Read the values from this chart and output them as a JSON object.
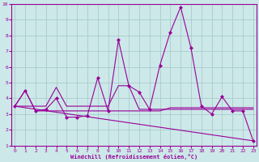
{
  "bg_color": "#cce8e8",
  "grid_color": "#aacccc",
  "line_color": "#990099",
  "xlabel": "Windchill (Refroidissement éolien,°C)",
  "ylim": [
    1,
    10
  ],
  "xlim": [
    0,
    23
  ],
  "yticks": [
    1,
    2,
    3,
    4,
    5,
    6,
    7,
    8,
    9,
    10
  ],
  "xticks": [
    0,
    1,
    2,
    3,
    4,
    5,
    6,
    7,
    8,
    9,
    10,
    11,
    12,
    13,
    14,
    15,
    16,
    17,
    18,
    19,
    20,
    21,
    22,
    23
  ],
  "series1_x": [
    0,
    1,
    2,
    3,
    4,
    5,
    6,
    7,
    8,
    9,
    10,
    11,
    12,
    13,
    14,
    15,
    16,
    17,
    18,
    19,
    20,
    21,
    22,
    23
  ],
  "series1_y": [
    3.5,
    4.5,
    3.2,
    3.3,
    4.0,
    2.8,
    2.8,
    2.9,
    5.3,
    3.2,
    7.7,
    4.8,
    4.4,
    3.3,
    6.1,
    8.2,
    9.8,
    7.2,
    3.5,
    3.0,
    4.1,
    3.2,
    3.2,
    1.3
  ],
  "series2_x": [
    0,
    1,
    2,
    3,
    4,
    5,
    6,
    7,
    8,
    9,
    10,
    11,
    12,
    13,
    14,
    15,
    16,
    17,
    18,
    19,
    20,
    21,
    22,
    23
  ],
  "series2_y": [
    3.5,
    4.5,
    3.2,
    3.2,
    3.2,
    3.2,
    3.2,
    3.2,
    3.2,
    3.2,
    3.2,
    3.2,
    3.2,
    3.2,
    3.2,
    3.4,
    3.4,
    3.4,
    3.4,
    3.4,
    3.4,
    3.4,
    3.4,
    3.4
  ],
  "series3_x": [
    0,
    1,
    2,
    3,
    4,
    5,
    6,
    7,
    8,
    9,
    10,
    11,
    12,
    13,
    14,
    15,
    16,
    17,
    18,
    19,
    20,
    21,
    22,
    23
  ],
  "series3_y": [
    3.5,
    3.5,
    3.5,
    3.5,
    4.7,
    3.5,
    3.5,
    3.5,
    3.5,
    3.5,
    4.8,
    4.8,
    3.3,
    3.3,
    3.3,
    3.3,
    3.3,
    3.3,
    3.3,
    3.3,
    3.3,
    3.3,
    3.3,
    3.3
  ],
  "series4_x": [
    0,
    23
  ],
  "series4_y": [
    3.5,
    1.3
  ]
}
